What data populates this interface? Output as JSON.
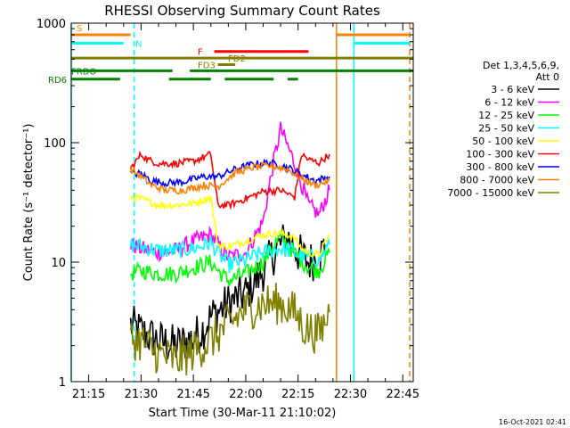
{
  "chart_data": {
    "type": "line",
    "title": "RHESSI Observing Summary Count Rates",
    "xlabel": "Start Time (30-Mar-11 21:10:02)",
    "ylabel": "Count Rate (s⁻¹ detector⁻¹)",
    "y_scale": "log",
    "ylim": [
      1,
      1000
    ],
    "y_ticks": [
      {
        "value": 1,
        "label": "1"
      },
      {
        "value": 10,
        "label": "10"
      },
      {
        "value": 100,
        "label": "100"
      },
      {
        "value": 1000,
        "label": "1000"
      }
    ],
    "xlim": [
      "21:10",
      "22:48"
    ],
    "x_ticks": [
      "21:15",
      "21:30",
      "21:45",
      "22:00",
      "22:15",
      "22:30",
      "22:45"
    ],
    "footer": "16-Oct-2021 02:41",
    "legend": {
      "header": [
        "Det 1,3,4,5,6,9,",
        "Att 0"
      ],
      "placement": "right"
    },
    "series": [
      {
        "name": "3 - 6 keV",
        "color": "#000000",
        "points": [
          [
            "21:27",
            3
          ],
          [
            "21:30",
            2.6
          ],
          [
            "21:35",
            2.2
          ],
          [
            "21:40",
            2.0
          ],
          [
            "21:45",
            2.3
          ],
          [
            "21:48",
            2.8
          ],
          [
            "21:50",
            3.5
          ],
          [
            "21:55",
            4.5
          ],
          [
            "22:00",
            5.5
          ],
          [
            "22:05",
            8.5
          ],
          [
            "22:09",
            13
          ],
          [
            "22:12",
            16
          ],
          [
            "22:15",
            12
          ],
          [
            "22:18",
            10
          ],
          [
            "22:21",
            11
          ],
          [
            "22:23",
            14
          ]
        ]
      },
      {
        "name": "6 - 12 keV",
        "color": "#ff00ff",
        "points": [
          [
            "21:27",
            14
          ],
          [
            "21:30",
            13
          ],
          [
            "21:35",
            12
          ],
          [
            "21:40",
            12.5
          ],
          [
            "21:45",
            15
          ],
          [
            "21:50",
            17
          ],
          [
            "21:52",
            14
          ],
          [
            "21:55",
            11
          ],
          [
            "22:00",
            12
          ],
          [
            "22:05",
            22
          ],
          [
            "22:08",
            70
          ],
          [
            "22:10",
            130
          ],
          [
            "22:13",
            80
          ],
          [
            "22:16",
            45
          ],
          [
            "22:18",
            30
          ],
          [
            "22:21",
            25
          ],
          [
            "22:24",
            40
          ]
        ]
      },
      {
        "name": "12 - 25 keV",
        "color": "#00ff00",
        "points": [
          [
            "21:27",
            8
          ],
          [
            "21:30",
            8.5
          ],
          [
            "21:35",
            8
          ],
          [
            "21:40",
            8
          ],
          [
            "21:45",
            9
          ],
          [
            "21:50",
            10
          ],
          [
            "21:52",
            8.5
          ],
          [
            "21:55",
            7
          ],
          [
            "22:00",
            8
          ],
          [
            "22:05",
            10
          ],
          [
            "22:08",
            14
          ],
          [
            "22:10",
            16
          ],
          [
            "22:12",
            14
          ],
          [
            "22:15",
            11
          ],
          [
            "22:18",
            9
          ],
          [
            "22:21",
            8.5
          ],
          [
            "22:24",
            12
          ]
        ]
      },
      {
        "name": "25 - 50 keV",
        "color": "#00ffff",
        "points": [
          [
            "21:27",
            14
          ],
          [
            "21:30",
            13.5
          ],
          [
            "21:35",
            12.5
          ],
          [
            "21:40",
            12.5
          ],
          [
            "21:45",
            13
          ],
          [
            "21:50",
            14.5
          ],
          [
            "21:52",
            12
          ],
          [
            "21:55",
            9.5
          ],
          [
            "22:00",
            10.5
          ],
          [
            "22:05",
            12
          ],
          [
            "22:10",
            13
          ],
          [
            "22:13",
            12.5
          ],
          [
            "22:15",
            11.5
          ],
          [
            "22:18",
            11
          ],
          [
            "22:21",
            10.5
          ],
          [
            "22:24",
            14
          ]
        ]
      },
      {
        "name": "50 - 100 keV",
        "color": "#ffff00",
        "points": [
          [
            "21:27",
            35
          ],
          [
            "21:30",
            34
          ],
          [
            "21:35",
            30
          ],
          [
            "21:40",
            30
          ],
          [
            "21:45",
            31
          ],
          [
            "21:50",
            35
          ],
          [
            "21:52",
            14
          ],
          [
            "21:55",
            13.5
          ],
          [
            "22:00",
            15
          ],
          [
            "22:05",
            17
          ],
          [
            "22:10",
            17.5
          ],
          [
            "22:14",
            16
          ],
          [
            "22:16",
            13
          ],
          [
            "22:18",
            12
          ],
          [
            "22:21",
            11.5
          ],
          [
            "22:24",
            17
          ]
        ]
      },
      {
        "name": "100 - 300 keV",
        "color": "#ff0000",
        "points": [
          [
            "21:27",
            60
          ],
          [
            "21:30",
            80
          ],
          [
            "21:32",
            72
          ],
          [
            "21:35",
            67
          ],
          [
            "21:40",
            67
          ],
          [
            "21:45",
            70
          ],
          [
            "21:50",
            80
          ],
          [
            "21:52",
            30
          ],
          [
            "21:55",
            30
          ],
          [
            "22:00",
            34
          ],
          [
            "22:05",
            39
          ],
          [
            "22:10",
            40
          ],
          [
            "22:14",
            35
          ],
          [
            "22:16",
            80
          ],
          [
            "22:18",
            72
          ],
          [
            "22:21",
            68
          ],
          [
            "22:24",
            80
          ]
        ]
      },
      {
        "name": "300 - 800 keV",
        "color": "#0000ff",
        "points": [
          [
            "21:27",
            55
          ],
          [
            "21:30",
            55
          ],
          [
            "21:33",
            48
          ],
          [
            "21:37",
            46
          ],
          [
            "21:42",
            47
          ],
          [
            "21:48",
            52
          ],
          [
            "21:52",
            52
          ],
          [
            "21:57",
            60
          ],
          [
            "22:02",
            66
          ],
          [
            "22:07",
            68
          ],
          [
            "22:12",
            62
          ],
          [
            "22:16",
            54
          ],
          [
            "22:20",
            48
          ],
          [
            "22:24",
            52
          ]
        ]
      },
      {
        "name": "800 - 7000 keV",
        "color": "#ff8000",
        "points": [
          [
            "21:27",
            60
          ],
          [
            "21:30",
            52
          ],
          [
            "21:33",
            44
          ],
          [
            "21:37",
            40
          ],
          [
            "21:42",
            40
          ],
          [
            "21:48",
            44
          ],
          [
            "21:52",
            43
          ],
          [
            "21:57",
            56
          ],
          [
            "22:02",
            62
          ],
          [
            "22:07",
            64
          ],
          [
            "22:12",
            60
          ],
          [
            "22:16",
            50
          ],
          [
            "22:20",
            44
          ],
          [
            "22:24",
            48
          ]
        ]
      },
      {
        "name": "7000 - 15000 keV",
        "color": "#808000",
        "points": [
          [
            "21:27",
            2.3
          ],
          [
            "21:30",
            2.2
          ],
          [
            "21:35",
            1.7
          ],
          [
            "21:40",
            1.5
          ],
          [
            "21:45",
            1.8
          ],
          [
            "21:50",
            2.2
          ],
          [
            "21:55",
            3.0
          ],
          [
            "22:00",
            4.0
          ],
          [
            "22:05",
            4.5
          ],
          [
            "22:10",
            4.5
          ],
          [
            "22:14",
            3.8
          ],
          [
            "22:17",
            2.8
          ],
          [
            "22:21",
            2.5
          ],
          [
            "22:24",
            3.8
          ]
        ]
      }
    ],
    "flags": [
      {
        "label": "S",
        "color": "#ff8000",
        "y": 800
      },
      {
        "label": "N",
        "color": "#00ffff",
        "y": 680
      },
      {
        "label": "F",
        "color": "#ff0000",
        "y": 580
      },
      {
        "label": "FD2",
        "color": "#808000",
        "y": 510
      },
      {
        "label": "FD3",
        "color": "#808000",
        "y": 450
      },
      {
        "label": "FRDO",
        "color": "#008000",
        "y": 400
      },
      {
        "label": "RD6",
        "color": "#008000",
        "y": 340
      }
    ],
    "flag_segments": [
      {
        "flag": "S",
        "color": "#ff8000",
        "ranges": [
          [
            "21:10",
            "21:27"
          ],
          [
            "22:26",
            "22:47"
          ]
        ]
      },
      {
        "flag": "N",
        "color": "#00ffff",
        "ranges": [
          [
            "21:10",
            "21:25"
          ],
          [
            "22:31",
            "22:47"
          ]
        ]
      },
      {
        "flag": "F",
        "color": "#ff0000",
        "ranges": [
          [
            "21:51",
            "22:18"
          ]
        ]
      },
      {
        "flag": "FD2",
        "color": "#808000",
        "ranges": [
          [
            "21:10",
            "22:48"
          ]
        ]
      },
      {
        "flag": "FD3",
        "color": "#808000",
        "ranges": [
          [
            "21:52",
            "21:57"
          ]
        ]
      },
      {
        "flag": "FRDO",
        "color": "#008000",
        "ranges": [
          [
            "21:10",
            "21:39"
          ],
          [
            "21:44",
            "22:48"
          ]
        ]
      },
      {
        "flag": "RD6",
        "color": "#008000",
        "ranges": [
          [
            "21:10",
            "21:24"
          ],
          [
            "21:38",
            "21:50"
          ],
          [
            "21:54",
            "22:08"
          ],
          [
            "22:12",
            "22:15"
          ]
        ]
      }
    ],
    "vertical_markers": [
      {
        "x": "21:10",
        "color": "#00ffff",
        "style": "solid"
      },
      {
        "x": "21:28",
        "color": "#00ffff",
        "style": "dashed"
      },
      {
        "x": "22:26",
        "color": "#ff8000",
        "style": "solid"
      },
      {
        "x": "22:31",
        "color": "#00ffff",
        "style": "solid"
      },
      {
        "x": "22:47",
        "color": "#ff8000",
        "style": "dashed"
      }
    ]
  },
  "colors": {
    "background": "#ffffff",
    "axis": "#000000"
  }
}
